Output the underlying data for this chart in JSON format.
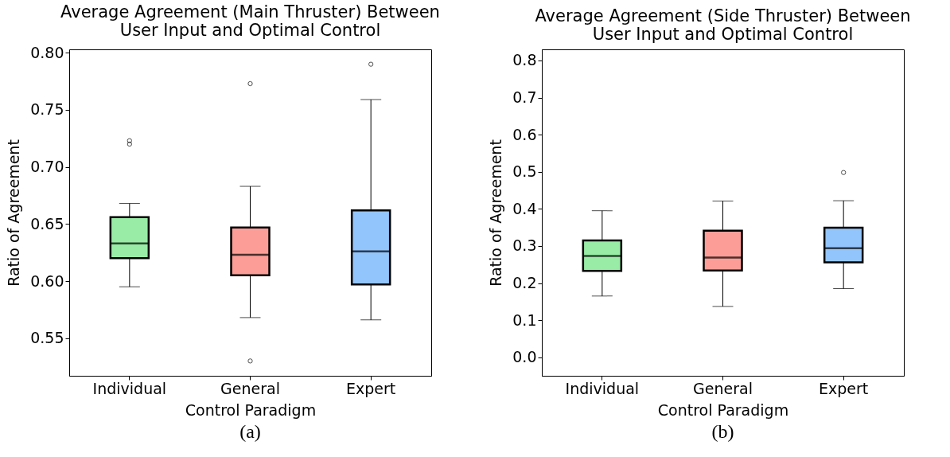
{
  "chart_data": [
    {
      "type": "box",
      "title": "Average Agreement (Main Thruster) Between\nUser Input and Optimal Control",
      "xlabel": "Control Paradigm",
      "ylabel": "Ratio of Agreement",
      "categories": [
        "Individual",
        "General",
        "Expert"
      ],
      "colors": [
        "#98eca6",
        "#fc9e97",
        "#93c5fd"
      ],
      "boxes": [
        {
          "low": 0.595,
          "q1": 0.62,
          "median": 0.633,
          "q3": 0.656,
          "high": 0.668,
          "outliers": [
            0.723,
            0.72
          ]
        },
        {
          "low": 0.568,
          "q1": 0.605,
          "median": 0.623,
          "q3": 0.647,
          "high": 0.683,
          "outliers": [
            0.773,
            0.53
          ]
        },
        {
          "low": 0.566,
          "q1": 0.597,
          "median": 0.626,
          "q3": 0.662,
          "high": 0.759,
          "outliers": [
            0.79
          ]
        }
      ],
      "ylim": [
        0.517,
        0.803
      ],
      "yticks": [
        0.55,
        {
          "value": 0.6,
          "label": "0.60"
        },
        0.65,
        {
          "value": 0.7,
          "label": "0.70"
        },
        0.75,
        {
          "value": 0.8,
          "label": "0.80"
        }
      ],
      "grid": false,
      "legend": false,
      "annotations": [
        "(a)"
      ]
    },
    {
      "type": "box",
      "title": "Average Agreement (Side Thruster) Between\nUser Input and Optimal Control",
      "xlabel": "Control Paradigm",
      "ylabel": "Ratio of Agreement",
      "categories": [
        "Individual",
        "General",
        "Expert"
      ],
      "colors": [
        "#98eca6",
        "#fc9e97",
        "#93c5fd"
      ],
      "boxes": [
        {
          "low": 0.165,
          "q1": 0.233,
          "median": 0.273,
          "q3": 0.315,
          "high": 0.395
        },
        {
          "low": 0.137,
          "q1": 0.234,
          "median": 0.269,
          "q3": 0.341,
          "high": 0.421
        },
        {
          "low": 0.185,
          "q1": 0.256,
          "median": 0.294,
          "q3": 0.349,
          "high": 0.422,
          "outliers": [
            0.498
          ]
        }
      ],
      "ylim": [
        -0.05,
        0.83
      ],
      "yticks": [
        {
          "value": 0,
          "label": "0.0"
        },
        0.1,
        0.2,
        0.3,
        0.4,
        0.5,
        0.6,
        0.7,
        0.8
      ],
      "grid": false,
      "legend": false,
      "annotations": [
        "(b)"
      ]
    }
  ]
}
